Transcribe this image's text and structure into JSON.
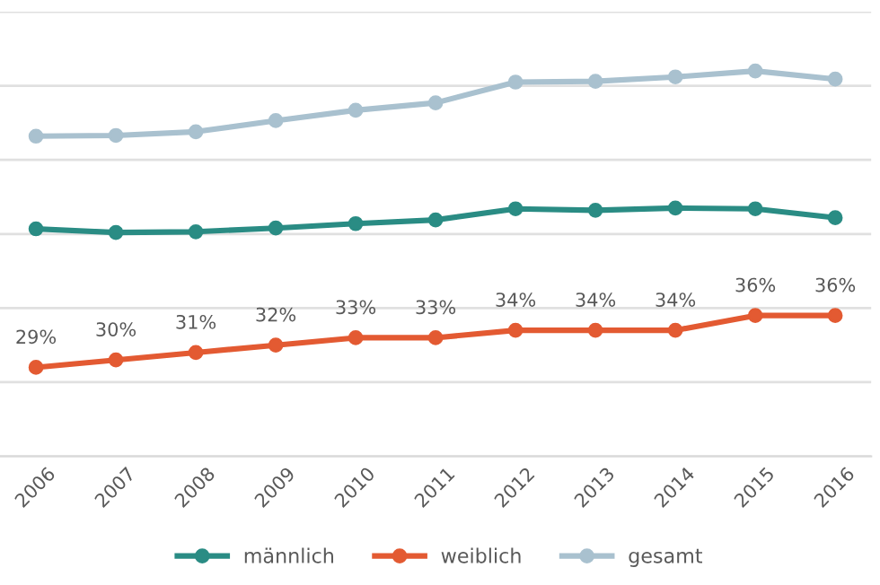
{
  "chart_data": {
    "type": "line",
    "categories": [
      "2006",
      "2007",
      "2008",
      "2009",
      "2010",
      "2011",
      "2012",
      "2013",
      "2014",
      "2015",
      "2016"
    ],
    "series": [
      {
        "name": "männlich",
        "color": "#2a8c84",
        "values": [
          47.7,
          47.2,
          47.3,
          47.8,
          48.4,
          48.9,
          50.4,
          50.2,
          50.5,
          50.4,
          49.2
        ]
      },
      {
        "name": "weiblich",
        "color": "#e35a32",
        "values": [
          29,
          30,
          31,
          32,
          33,
          33,
          34,
          34,
          34,
          36,
          36
        ],
        "value_labels": [
          "29%",
          "30%",
          "31%",
          "32%",
          "33%",
          "33%",
          "34%",
          "34%",
          "34%",
          "36%",
          "36%"
        ]
      },
      {
        "name": "gesamt",
        "color": "#a9c1cf",
        "values": [
          60.2,
          60.3,
          60.8,
          62.3,
          63.7,
          64.7,
          67.5,
          67.6,
          68.2,
          69,
          67.9
        ]
      }
    ],
    "ylim": [
      17,
      77
    ],
    "yticks": [
      {
        "value": 17,
        "label": null
      },
      {
        "value": 27,
        "label": null
      },
      {
        "value": 37,
        "label": null
      },
      {
        "value": 47,
        "label": null
      },
      {
        "value": 57,
        "label": null
      },
      {
        "value": 67,
        "label": null
      },
      {
        "value": 77,
        "label": null
      }
    ],
    "tick_labels": "x",
    "marker": "circle",
    "line_style": "solid",
    "grid": "y",
    "legend": "bottom"
  }
}
